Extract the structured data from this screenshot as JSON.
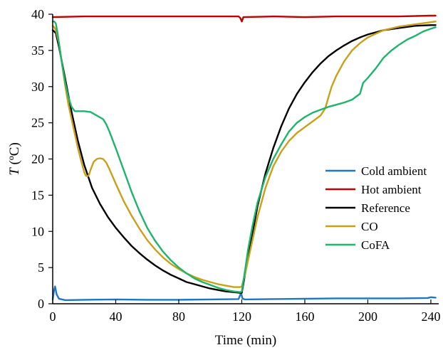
{
  "chart_data": {
    "type": "line",
    "title": "",
    "xlabel": "Time (min)",
    "ylabel_var": "T",
    "ylabel_unit": " (ºC)",
    "xlim": [
      0,
      245
    ],
    "ylim": [
      0,
      40
    ],
    "xticks": [
      0,
      40,
      80,
      120,
      160,
      200,
      240
    ],
    "yticks": [
      0,
      5,
      10,
      15,
      20,
      25,
      30,
      35,
      40
    ],
    "xtick_labels": [
      "0",
      "40",
      "80",
      "120",
      "160",
      "200",
      "240"
    ],
    "ytick_labels": [
      "0",
      "5",
      "10",
      "15",
      "20",
      "25",
      "30",
      "35",
      "40"
    ],
    "grid": false,
    "legend_position": "right",
    "series": [
      {
        "name": "Cold ambient",
        "color": "#1f77c4",
        "points": [
          [
            0,
            0.6
          ],
          [
            1,
            2.0
          ],
          [
            1.5,
            2.4
          ],
          [
            2.5,
            1.3
          ],
          [
            4,
            0.7
          ],
          [
            8,
            0.5
          ],
          [
            20,
            0.55
          ],
          [
            40,
            0.6
          ],
          [
            60,
            0.55
          ],
          [
            80,
            0.55
          ],
          [
            100,
            0.6
          ],
          [
            118,
            0.65
          ],
          [
            119.5,
            1.5
          ],
          [
            120.5,
            0.7
          ],
          [
            122,
            0.6
          ],
          [
            140,
            0.65
          ],
          [
            160,
            0.7
          ],
          [
            180,
            0.75
          ],
          [
            200,
            0.75
          ],
          [
            220,
            0.75
          ],
          [
            238,
            0.8
          ],
          [
            240,
            0.9
          ],
          [
            243,
            0.85
          ]
        ]
      },
      {
        "name": "Hot ambient",
        "color": "#c00000",
        "points": [
          [
            0,
            39.6
          ],
          [
            20,
            39.7
          ],
          [
            40,
            39.7
          ],
          [
            60,
            39.7
          ],
          [
            80,
            39.7
          ],
          [
            100,
            39.7
          ],
          [
            118,
            39.7
          ],
          [
            119,
            39.5
          ],
          [
            120,
            39.0
          ],
          [
            121,
            39.6
          ],
          [
            140,
            39.7
          ],
          [
            160,
            39.6
          ],
          [
            180,
            39.7
          ],
          [
            200,
            39.7
          ],
          [
            220,
            39.7
          ],
          [
            240,
            39.8
          ],
          [
            243,
            39.8
          ]
        ]
      },
      {
        "name": "Reference",
        "color": "#000000",
        "points": [
          [
            0,
            37.8
          ],
          [
            2,
            37.4
          ],
          [
            4,
            35.5
          ],
          [
            8,
            31.0
          ],
          [
            12,
            26.5
          ],
          [
            16,
            22.5
          ],
          [
            20,
            19.2
          ],
          [
            25,
            16.0
          ],
          [
            30,
            13.8
          ],
          [
            35,
            12.0
          ],
          [
            40,
            10.5
          ],
          [
            45,
            9.2
          ],
          [
            50,
            8.0
          ],
          [
            55,
            7.0
          ],
          [
            60,
            6.1
          ],
          [
            65,
            5.3
          ],
          [
            70,
            4.6
          ],
          [
            75,
            4.0
          ],
          [
            80,
            3.5
          ],
          [
            85,
            3.0
          ],
          [
            90,
            2.7
          ],
          [
            95,
            2.4
          ],
          [
            100,
            2.1
          ],
          [
            105,
            1.9
          ],
          [
            110,
            1.7
          ],
          [
            115,
            1.6
          ],
          [
            119,
            1.5
          ],
          [
            120,
            1.5
          ],
          [
            122,
            4.0
          ],
          [
            124,
            6.5
          ],
          [
            127,
            10.0
          ],
          [
            130,
            13.5
          ],
          [
            135,
            18.0
          ],
          [
            140,
            21.5
          ],
          [
            145,
            24.5
          ],
          [
            150,
            27.0
          ],
          [
            155,
            29.0
          ],
          [
            160,
            30.6
          ],
          [
            165,
            32.0
          ],
          [
            170,
            33.2
          ],
          [
            175,
            34.2
          ],
          [
            180,
            35.0
          ],
          [
            185,
            35.7
          ],
          [
            190,
            36.3
          ],
          [
            195,
            36.8
          ],
          [
            200,
            37.2
          ],
          [
            210,
            37.8
          ],
          [
            220,
            38.1
          ],
          [
            230,
            38.4
          ],
          [
            240,
            38.5
          ],
          [
            243,
            38.5
          ]
        ]
      },
      {
        "name": "CO",
        "color": "#c9a018",
        "points": [
          [
            0,
            38.4
          ],
          [
            1,
            38.2
          ],
          [
            2,
            37.8
          ],
          [
            4,
            36.0
          ],
          [
            6,
            33.0
          ],
          [
            8,
            30.0
          ],
          [
            10,
            27.5
          ],
          [
            12,
            25.5
          ],
          [
            14,
            23.5
          ],
          [
            16,
            21.5
          ],
          [
            18,
            19.8
          ],
          [
            20,
            18.2
          ],
          [
            21,
            17.7
          ],
          [
            22,
            17.6
          ],
          [
            23,
            17.8
          ],
          [
            24,
            18.5
          ],
          [
            26,
            19.6
          ],
          [
            28,
            20.0
          ],
          [
            30,
            20.1
          ],
          [
            32,
            20.0
          ],
          [
            34,
            19.5
          ],
          [
            36,
            18.6
          ],
          [
            40,
            16.6
          ],
          [
            45,
            14.2
          ],
          [
            50,
            12.2
          ],
          [
            55,
            10.4
          ],
          [
            60,
            8.8
          ],
          [
            65,
            7.5
          ],
          [
            70,
            6.4
          ],
          [
            75,
            5.5
          ],
          [
            80,
            4.8
          ],
          [
            85,
            4.2
          ],
          [
            90,
            3.7
          ],
          [
            95,
            3.3
          ],
          [
            100,
            3.0
          ],
          [
            105,
            2.7
          ],
          [
            110,
            2.5
          ],
          [
            115,
            2.3
          ],
          [
            119,
            2.3
          ],
          [
            120,
            2.4
          ],
          [
            122,
            4.0
          ],
          [
            124,
            6.0
          ],
          [
            127,
            9.0
          ],
          [
            130,
            12.0
          ],
          [
            135,
            16.0
          ],
          [
            140,
            19.0
          ],
          [
            145,
            21.0
          ],
          [
            150,
            22.5
          ],
          [
            155,
            23.6
          ],
          [
            160,
            24.4
          ],
          [
            165,
            25.2
          ],
          [
            170,
            26.0
          ],
          [
            173,
            27.0
          ],
          [
            175,
            28.5
          ],
          [
            177,
            30.0
          ],
          [
            180,
            31.5
          ],
          [
            185,
            33.5
          ],
          [
            190,
            35.0
          ],
          [
            195,
            36.0
          ],
          [
            200,
            36.8
          ],
          [
            210,
            37.8
          ],
          [
            220,
            38.3
          ],
          [
            230,
            38.6
          ],
          [
            240,
            38.9
          ],
          [
            243,
            39.0
          ]
        ]
      },
      {
        "name": "CoFA",
        "color": "#1db46c",
        "points": [
          [
            0,
            39.0
          ],
          [
            1,
            39.0
          ],
          [
            2,
            38.7
          ],
          [
            3,
            37.5
          ],
          [
            4,
            36.0
          ],
          [
            6,
            33.0
          ],
          [
            8,
            30.5
          ],
          [
            10,
            28.5
          ],
          [
            12,
            27.2
          ],
          [
            14,
            26.6
          ],
          [
            16,
            26.6
          ],
          [
            20,
            26.6
          ],
          [
            24,
            26.5
          ],
          [
            28,
            26.0
          ],
          [
            32,
            25.5
          ],
          [
            34,
            24.8
          ],
          [
            36,
            23.8
          ],
          [
            40,
            21.5
          ],
          [
            45,
            18.5
          ],
          [
            50,
            15.5
          ],
          [
            55,
            12.8
          ],
          [
            60,
            10.5
          ],
          [
            65,
            8.7
          ],
          [
            70,
            7.2
          ],
          [
            75,
            6.0
          ],
          [
            80,
            5.0
          ],
          [
            85,
            4.2
          ],
          [
            90,
            3.5
          ],
          [
            95,
            3.0
          ],
          [
            100,
            2.6
          ],
          [
            105,
            2.2
          ],
          [
            110,
            1.9
          ],
          [
            115,
            1.7
          ],
          [
            119,
            1.6
          ],
          [
            120,
            1.7
          ],
          [
            122,
            4.5
          ],
          [
            124,
            7.5
          ],
          [
            127,
            11.0
          ],
          [
            130,
            14.0
          ],
          [
            135,
            17.5
          ],
          [
            140,
            20.0
          ],
          [
            145,
            22.0
          ],
          [
            150,
            23.8
          ],
          [
            155,
            25.0
          ],
          [
            160,
            25.8
          ],
          [
            165,
            26.4
          ],
          [
            170,
            26.8
          ],
          [
            175,
            27.2
          ],
          [
            180,
            27.5
          ],
          [
            185,
            27.8
          ],
          [
            190,
            28.2
          ],
          [
            195,
            29.0
          ],
          [
            197,
            30.5
          ],
          [
            200,
            31.2
          ],
          [
            205,
            32.5
          ],
          [
            210,
            34.0
          ],
          [
            215,
            35.0
          ],
          [
            220,
            35.8
          ],
          [
            225,
            36.5
          ],
          [
            230,
            37.0
          ],
          [
            235,
            37.6
          ],
          [
            240,
            38.0
          ],
          [
            243,
            38.2
          ]
        ]
      }
    ]
  }
}
